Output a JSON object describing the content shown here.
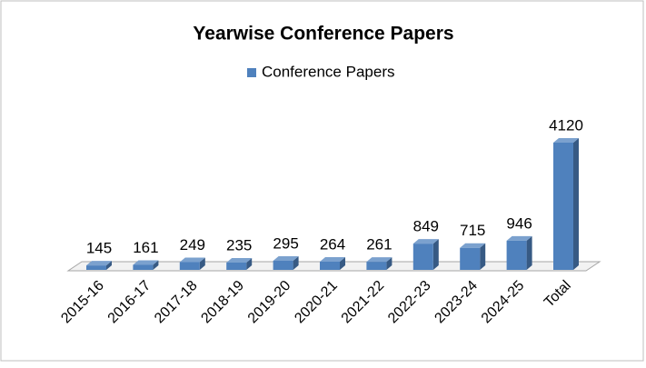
{
  "chart_data": {
    "type": "bar3d",
    "title": "Yearwise Conference Papers",
    "categories": [
      "2015-16",
      "2016-17",
      "2017-18",
      "2018-19",
      "2019-20",
      "2020-21",
      "2021-22",
      "2022-23",
      "2023-24",
      "2024-25",
      "Total"
    ],
    "series": [
      {
        "name": "Conference Papers",
        "color": "#4f81bd",
        "values": [
          145,
          161,
          249,
          235,
          295,
          264,
          261,
          849,
          715,
          946,
          4120
        ]
      }
    ],
    "legend": "top"
  }
}
